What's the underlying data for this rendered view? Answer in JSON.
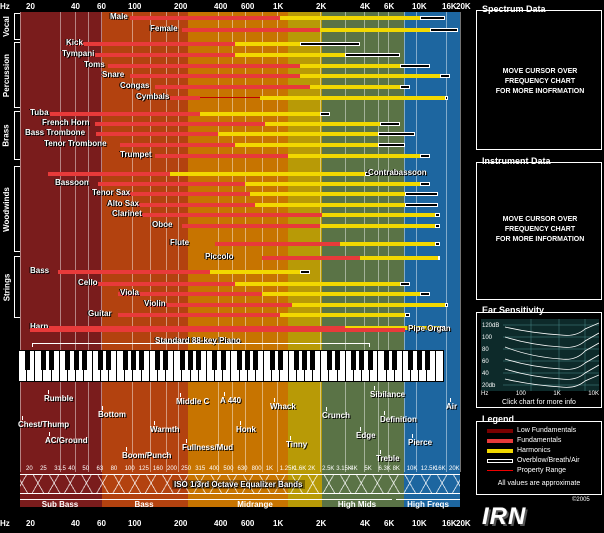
{
  "colors": {
    "low_fund": "#7a0000",
    "fund": "#e83a3a",
    "harm": "#f2d800",
    "over": "#000000",
    "range": "#c00000"
  },
  "freq_axis": {
    "top": [
      "Hz",
      "20",
      "40",
      "60",
      "100",
      "200",
      "400",
      "600",
      "1K",
      "2K",
      "4K",
      "6K",
      "10K",
      "16K",
      "20K"
    ],
    "bottom": [
      "Hz",
      "20",
      "40",
      "60",
      "100",
      "200",
      "400",
      "600",
      "1K",
      "2K",
      "4K",
      "6K",
      "10K",
      "16K",
      "20K"
    ]
  },
  "sections": [
    "Vocal",
    "Percussion",
    "Brass",
    "Woodwinds",
    "Strings"
  ],
  "instruments": [
    {
      "name": "Male",
      "low": 0,
      "fund": [
        130,
        280
      ],
      "harm": [
        280,
        420
      ],
      "over": [
        420,
        445
      ]
    },
    {
      "name": "Female",
      "low": 0,
      "fund": [
        182,
        320
      ],
      "harm": [
        320,
        430
      ],
      "over": [
        430,
        458
      ]
    },
    {
      "name": "Kick",
      "fund": [
        66,
        235
      ],
      "harm": [
        235,
        300
      ],
      "over": [
        300,
        360
      ]
    },
    {
      "name": "Tympani",
      "fund": [
        90,
        235
      ],
      "harm": [
        235,
        345
      ],
      "over": [
        345,
        400
      ]
    },
    {
      "name": "Toms",
      "fund": [
        108,
        300
      ],
      "harm": [
        300,
        400
      ],
      "over": [
        400,
        430
      ]
    },
    {
      "name": "Snare",
      "fund": [
        130,
        300
      ],
      "harm": [
        300,
        440
      ],
      "over": [
        440,
        450
      ]
    },
    {
      "name": "Congas",
      "fund": [
        155,
        310
      ],
      "harm": [
        310,
        400
      ],
      "over": [
        400,
        410
      ]
    },
    {
      "name": "Cymbals",
      "fund": [
        170,
        200
      ],
      "harm": [
        260,
        445
      ],
      "over": [
        445,
        448
      ]
    },
    {
      "name": "Tuba",
      "fund": [
        50,
        200
      ],
      "harm": [
        200,
        320
      ],
      "over": [
        320,
        330
      ]
    },
    {
      "name": "French Horn",
      "fund": [
        95,
        265
      ],
      "harm": [
        265,
        380
      ],
      "over": [
        380,
        400
      ]
    },
    {
      "name": "Bass Trombone",
      "fund": [
        96,
        218
      ],
      "harm": [
        218,
        378
      ],
      "over": [
        378,
        415
      ]
    },
    {
      "name": "Tenor Trombone",
      "fund": [
        120,
        235
      ],
      "harm": [
        235,
        378
      ],
      "over": [
        378,
        405
      ]
    },
    {
      "name": "Trumpet",
      "fund": [
        155,
        288
      ],
      "harm": [
        288,
        420
      ],
      "over": [
        420,
        430
      ]
    },
    {
      "name": "Contrabassoon",
      "fund": [
        48,
        170
      ],
      "harm": [
        170,
        365
      ],
      "over": [
        365,
        370
      ]
    },
    {
      "name": "Bassoon",
      "fund": [
        98,
        245
      ],
      "harm": [
        245,
        420
      ],
      "over": [
        420,
        430
      ]
    },
    {
      "name": "Tenor Sax",
      "fund": [
        122,
        250
      ],
      "harm": [
        250,
        405
      ],
      "over": [
        405,
        438
      ]
    },
    {
      "name": "Alto Sax",
      "fund": [
        137,
        255
      ],
      "harm": [
        255,
        405
      ],
      "over": [
        405,
        438
      ]
    },
    {
      "name": "Clarinet",
      "fund": [
        142,
        322
      ],
      "harm": [
        322,
        435
      ],
      "over": [
        435,
        440
      ]
    },
    {
      "name": "Oboe",
      "fund": [
        182,
        320
      ],
      "harm": [
        320,
        435
      ],
      "over": [
        435,
        440
      ]
    },
    {
      "name": "Flute",
      "fund": [
        215,
        340
      ],
      "harm": [
        340,
        435
      ],
      "over": [
        435,
        440
      ]
    },
    {
      "name": "Piccolo",
      "fund": [
        262,
        360
      ],
      "harm": [
        360,
        438
      ],
      "over": [
        438,
        440
      ]
    },
    {
      "name": "Bass",
      "fund": [
        58,
        210
      ],
      "harm": [
        210,
        300
      ],
      "over": [
        300,
        310
      ]
    },
    {
      "name": "Cello",
      "fund": [
        90,
        235
      ],
      "harm": [
        235,
        400
      ],
      "over": [
        400,
        410
      ]
    },
    {
      "name": "Viola",
      "fund": [
        118,
        262
      ],
      "harm": [
        262,
        420
      ],
      "over": [
        420,
        430
      ]
    },
    {
      "name": "Violin",
      "fund": [
        148,
        292
      ],
      "harm": [
        292,
        445
      ],
      "over": [
        445,
        448
      ]
    },
    {
      "name": "Guitar",
      "fund": [
        118,
        280
      ],
      "harm": [
        280,
        405
      ],
      "over": [
        405,
        410
      ]
    },
    {
      "name": "Harp",
      "fund": [
        48,
        345
      ],
      "harm": [
        345,
        440
      ],
      "over": [
        440,
        445
      ]
    },
    {
      "name": "Pipe Organ",
      "fund": [
        30,
        405
      ],
      "harm": [],
      "over": []
    }
  ],
  "piano_label": "Standard 88-key Piano",
  "descriptors": [
    "Rumble",
    "Chest/Thump",
    "Bottom",
    "AC/Ground",
    "Boom/Punch",
    "Warmth",
    "Middle C",
    "A 440",
    "Fullness/Mud",
    "Honk",
    "Whack",
    "Tinny",
    "Crunch",
    "Sibilance",
    "Definition",
    "Edge",
    "Pierce",
    "Air",
    "Treble"
  ],
  "eq_label": "ISO 1/3rd Octave Equalizer Bands",
  "eq_freqs": [
    "20",
    "25",
    "31.5",
    "40",
    "50",
    "63",
    "80",
    "100",
    "125",
    "160",
    "200",
    "250",
    "315",
    "400",
    "500",
    "630",
    "800",
    "1K",
    "1.25K",
    "1.6K",
    "2K",
    "2.5K",
    "3.15K",
    "4K",
    "5K",
    "6.3K",
    "8K",
    "10K",
    "12.5K",
    "16K",
    "20K"
  ],
  "bands": [
    "Sub Bass",
    "Bass",
    "Midrange",
    "High Mids",
    "High Freqs"
  ],
  "spectrum_panel": {
    "title": "Spectrum Data",
    "message": [
      "MOVE CURSOR OVER",
      "FREQUENCY CHART",
      "FOR MORE INOFRMATION"
    ]
  },
  "instrument_panel": {
    "title": "Instrument Data",
    "message": [
      "MOVE CURSOR OVER",
      "FREQUENCY CHART",
      "FOR MORE INFORMATION"
    ]
  },
  "ear_panel": {
    "title": "Ear Sensitivity",
    "db_labels": [
      "120dB",
      "100",
      "80",
      "60",
      "40",
      "20db"
    ],
    "freq_labels": [
      "Hz",
      "100",
      "1K",
      "10K"
    ],
    "caption": "Click chart for more info"
  },
  "legend": {
    "title": "Legend",
    "items": [
      "Low Fundamentals",
      "Fundamentals",
      "Harmonics",
      "Overblow/Breath/Air",
      "Property Range"
    ],
    "note": "All values are approximate"
  },
  "copyright": "©2005",
  "logo": "IRN"
}
